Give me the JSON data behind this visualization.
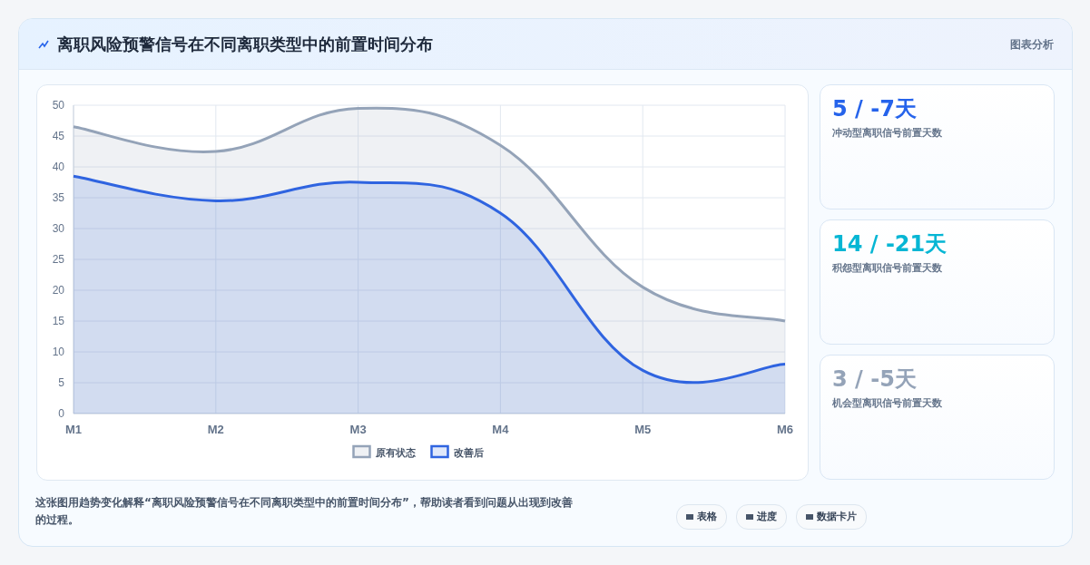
{
  "chart_data": [
    {
      "type": "area",
      "title": "离职风险预警信号在不同离职类型中的前置时间分布",
      "categories": [
        "M1",
        "M2",
        "M3",
        "M4",
        "M5",
        "M6"
      ],
      "series": [
        {
          "name": "原有状态",
          "color": "#94a3b8",
          "values": [
            46.5,
            42.5,
            49.5,
            43.5,
            20.5,
            15
          ]
        },
        {
          "name": "改善后",
          "color": "#2f64e0",
          "values": [
            38.5,
            34.5,
            37.5,
            32.5,
            7,
            8
          ]
        }
      ],
      "ylim": [
        0,
        50
      ],
      "yticks": [
        0,
        5,
        10,
        15,
        20,
        25,
        30,
        35,
        40,
        45,
        50
      ],
      "grid": true,
      "legend": "bottom",
      "annotations": [
        "这张图用趋势变化解释“离职风险预警信号在不同离职类型中的前置时间分布”，帮助读者看到问题从出现到改善的过程。",
        "表格",
        "进度",
        "数据卡片"
      ]
    },
    {
      "type": "other",
      "title": "5 / -7天",
      "subtitle": "冲动型离职信号前置天数",
      "annotations": [
        "图表分析"
      ]
    },
    {
      "type": "other",
      "title": "14 / -21天",
      "subtitle": "积怨型离职信号前置天数"
    },
    {
      "type": "other",
      "title": "3 / -5天",
      "subtitle": "机会型离职信号前置天数"
    }
  ]
}
